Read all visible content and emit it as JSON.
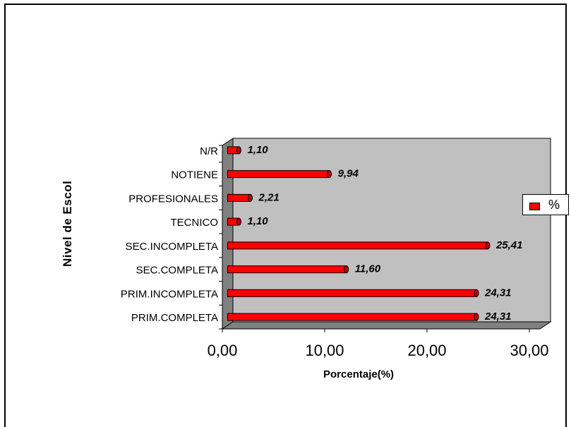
{
  "chart_data": {
    "type": "bar",
    "orientation": "horizontal",
    "style": "3d-cylinder",
    "categories": [
      "PRIM.COMPLETA",
      "PRIM.INCOMPLETA",
      "SEC.COMPLETA",
      "SEC.INCOMPLETA",
      "TECNICO",
      "PROFESIONALES",
      "NOTIENE",
      "N/R"
    ],
    "series": [
      {
        "name": "%",
        "values": [
          24.31,
          24.31,
          11.6,
          25.41,
          1.1,
          2.21,
          9.94,
          1.1
        ],
        "color": "#ff0000"
      }
    ],
    "data_labels": [
      "24,31",
      "24,31",
      "11,60",
      "25,41",
      "1,10",
      "2,21",
      "9,94",
      "1,10"
    ],
    "xlabel": "Porcentaje(%)",
    "ylabel": "Nivel de Escol",
    "xlim": [
      0,
      30
    ],
    "xticks": [
      "0,00",
      "10,00",
      "20,00",
      "30,00"
    ],
    "xtick_values": [
      0,
      10,
      20,
      30
    ],
    "legend": {
      "position": "right",
      "entries": [
        "%"
      ]
    },
    "plot_area_color": "#c0c0c0",
    "wall_color": "#808080"
  }
}
